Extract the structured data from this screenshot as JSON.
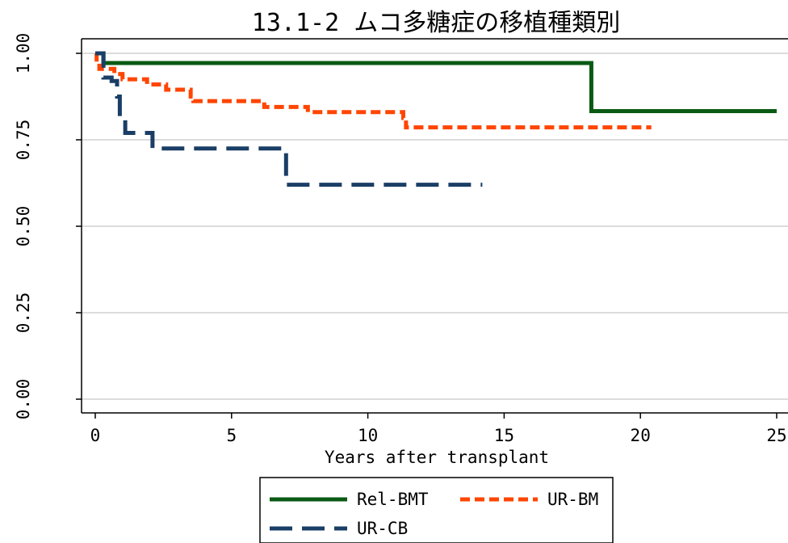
{
  "chart_data": {
    "type": "line",
    "title": "13.1-2 ムコ多糖症の移植種類別",
    "xlabel": "Years after transplant",
    "ylabel": "",
    "xlim": [
      0,
      25
    ],
    "ylim": [
      0,
      1
    ],
    "x_ticks": [
      "0",
      "5",
      "10",
      "15",
      "20",
      "25"
    ],
    "y_ticks": [
      "0.00",
      "0.25",
      "0.50",
      "0.75",
      "1.00"
    ],
    "grid": true,
    "legend_position": "bottom",
    "series": [
      {
        "name": "Rel-BMT",
        "color": "#0a5a14",
        "dash": "solid",
        "steps": [
          [
            0,
            1.0
          ],
          [
            0.3,
            0.972
          ],
          [
            18.2,
            0.833
          ],
          [
            25,
            0.833
          ]
        ]
      },
      {
        "name": "UR-BM",
        "color": "#ff4500",
        "dash": "short",
        "steps": [
          [
            0,
            1.0
          ],
          [
            0.05,
            0.975
          ],
          [
            0.15,
            0.955
          ],
          [
            0.7,
            0.94
          ],
          [
            1.0,
            0.925
          ],
          [
            1.9,
            0.91
          ],
          [
            2.6,
            0.895
          ],
          [
            3.5,
            0.875
          ],
          [
            3.6,
            0.862
          ],
          [
            6.2,
            0.845
          ],
          [
            7.8,
            0.83
          ],
          [
            11.3,
            0.813
          ],
          [
            11.4,
            0.786
          ],
          [
            20.4,
            0.786
          ]
        ]
      },
      {
        "name": "UR-CB",
        "color": "#1a3e66",
        "dash": "long",
        "steps": [
          [
            0,
            1.0
          ],
          [
            0.3,
            0.93
          ],
          [
            0.6,
            0.92
          ],
          [
            0.8,
            0.875
          ],
          [
            0.9,
            0.81
          ],
          [
            1.1,
            0.77
          ],
          [
            2.1,
            0.725
          ],
          [
            7.0,
            0.62
          ],
          [
            14.2,
            0.62
          ]
        ]
      }
    ]
  }
}
